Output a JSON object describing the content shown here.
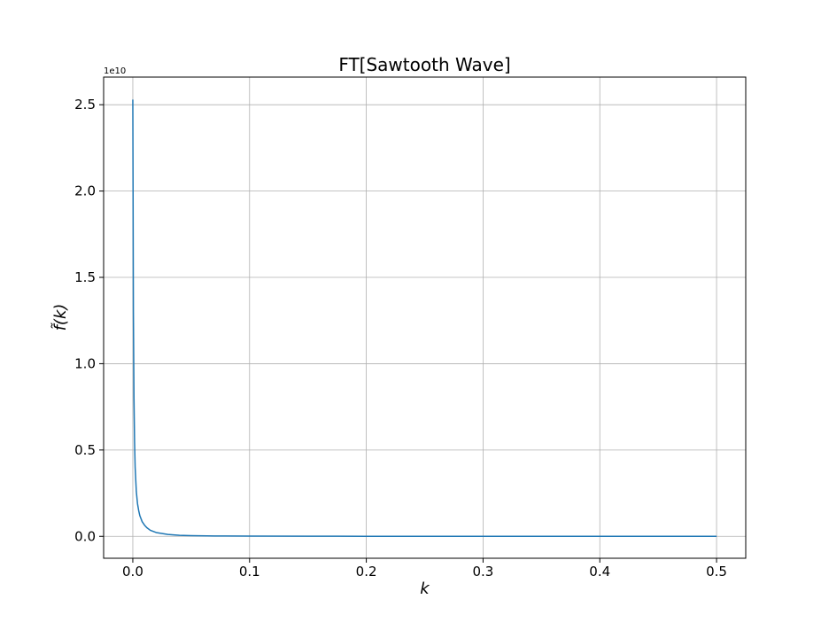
{
  "chart_data": {
    "type": "line",
    "title": "FT[Sawtooth Wave]",
    "xlabel": "k",
    "ylabel": "f̃(k)",
    "y_offset_text": "1e10",
    "xlim": [
      -0.025,
      0.525
    ],
    "ylim": [
      -0.127,
      2.66
    ],
    "x_ticks": [
      0.0,
      0.1,
      0.2,
      0.3,
      0.4,
      0.5
    ],
    "x_tick_labels": [
      "0.0",
      "0.1",
      "0.2",
      "0.3",
      "0.4",
      "0.5"
    ],
    "y_ticks": [
      0.0,
      0.5,
      1.0,
      1.5,
      2.0,
      2.5
    ],
    "y_tick_labels": [
      "0.0",
      "0.5",
      "1.0",
      "1.5",
      "2.0",
      "2.5"
    ],
    "y_units_multiplier": 10000000000.0,
    "grid": true,
    "line_color": "#1f77b4",
    "series": [
      {
        "x": [
          0.0,
          0.0005,
          0.001,
          0.0015,
          0.002,
          0.003,
          0.004,
          0.005,
          0.006,
          0.008,
          0.01,
          0.012,
          0.015,
          0.02,
          0.03,
          0.04,
          0.05,
          0.07,
          0.1,
          0.15,
          0.2,
          0.3,
          0.4,
          0.5
        ],
        "y": [
          2.53,
          1.3,
          0.8,
          0.55,
          0.4,
          0.26,
          0.19,
          0.15,
          0.12,
          0.085,
          0.065,
          0.05,
          0.035,
          0.022,
          0.011,
          0.006,
          0.004,
          0.002,
          0.001,
          0.0005,
          0.0003,
          0.0001,
          5e-05,
          2e-05
        ]
      }
    ]
  }
}
